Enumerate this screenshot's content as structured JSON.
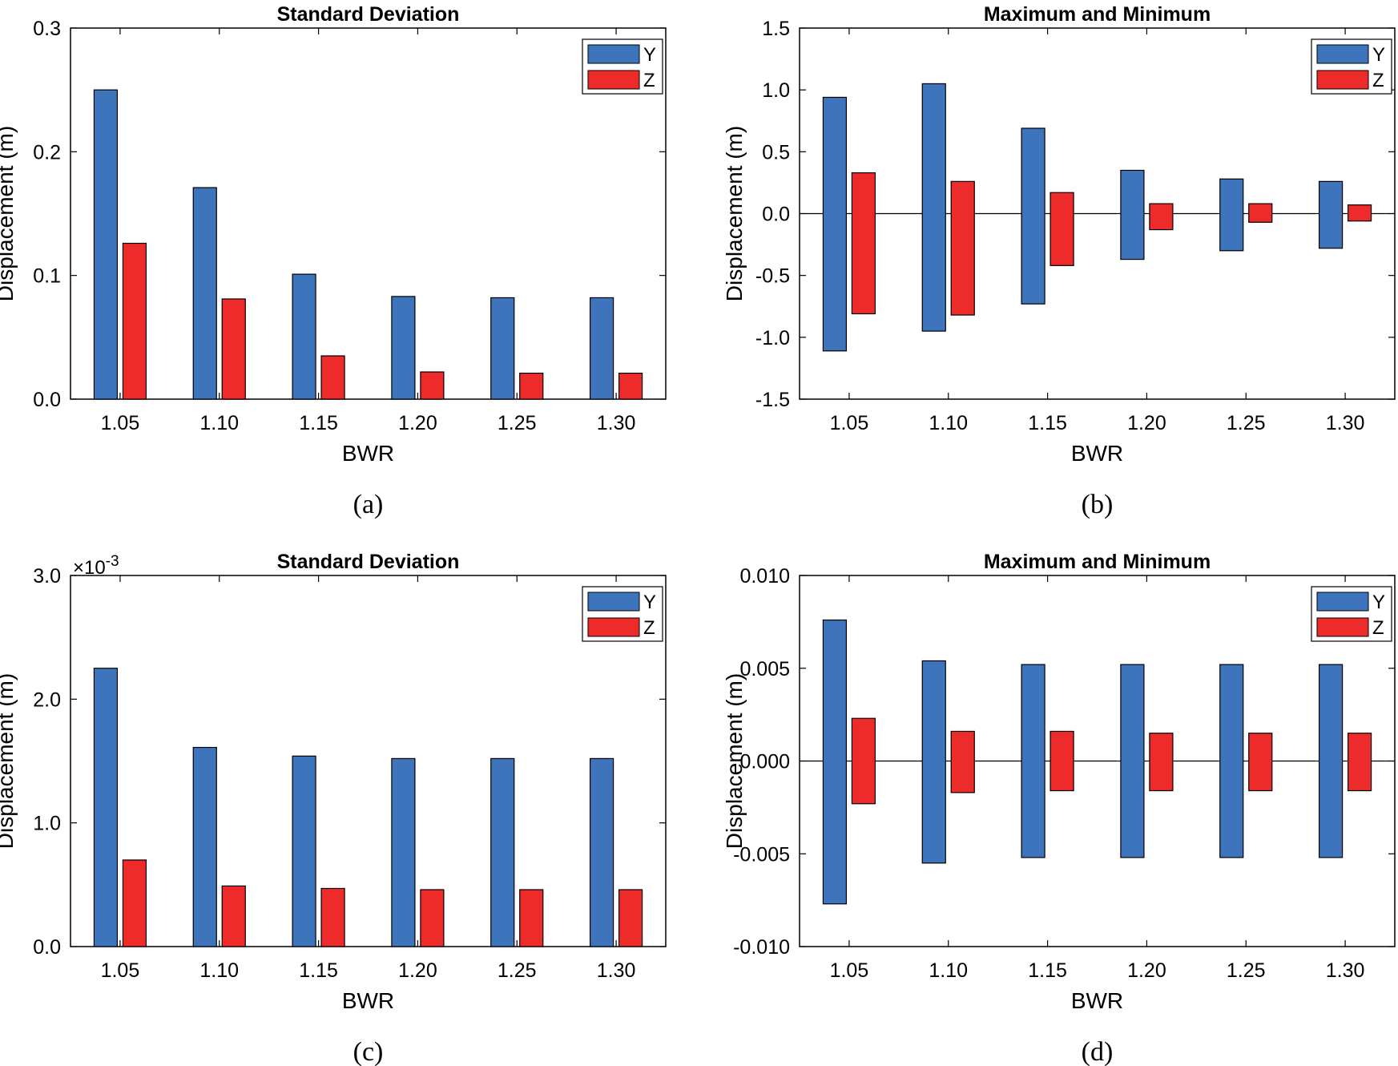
{
  "colors": {
    "Y": "#3d74bb",
    "Z": "#ee2b2b",
    "axis": "#000000",
    "background": "#ffffff"
  },
  "chart_data": [
    {
      "id": "a",
      "caption": "(a)",
      "type": "bar",
      "title": "Standard Deviation",
      "xlabel": "BWR",
      "ylabel": "Displacement (m)",
      "categories": [
        "1.05",
        "1.10",
        "1.15",
        "1.20",
        "1.25",
        "1.30"
      ],
      "series": [
        {
          "name": "Y",
          "values": [
            0.25,
            0.171,
            0.101,
            0.083,
            0.082,
            0.082
          ]
        },
        {
          "name": "Z",
          "values": [
            0.126,
            0.081,
            0.035,
            0.022,
            0.021,
            0.021
          ]
        }
      ],
      "ylim": [
        0,
        0.3
      ],
      "yticks": [
        0,
        0.1,
        0.2,
        0.3
      ],
      "ytick_labels": [
        "0.0",
        "0.1",
        "0.2",
        "0.3"
      ],
      "legend": "top-right",
      "legend_entries": [
        "Y",
        "Z"
      ],
      "exponent_label": null
    },
    {
      "id": "b",
      "caption": "(b)",
      "type": "floating-bar",
      "title": "Maximum and Minimum",
      "xlabel": "BWR",
      "ylabel": "Displacement (m)",
      "categories": [
        "1.05",
        "1.10",
        "1.15",
        "1.20",
        "1.25",
        "1.30"
      ],
      "series": [
        {
          "name": "Y",
          "max": [
            0.94,
            1.05,
            0.69,
            0.35,
            0.28,
            0.26
          ],
          "min": [
            -1.11,
            -0.95,
            -0.73,
            -0.37,
            -0.3,
            -0.28
          ]
        },
        {
          "name": "Z",
          "max": [
            0.33,
            0.26,
            0.17,
            0.08,
            0.08,
            0.07
          ],
          "min": [
            -0.81,
            -0.82,
            -0.42,
            -0.13,
            -0.07,
            -0.06
          ]
        }
      ],
      "ylim": [
        -1.5,
        1.5
      ],
      "yticks": [
        -1.5,
        -1.0,
        -0.5,
        0.0,
        0.5,
        1.0,
        1.5
      ],
      "ytick_labels": [
        "-1.5",
        "-1.0",
        "-0.5",
        "0.0",
        "0.5",
        "1.0",
        "1.5"
      ],
      "zero_line": true,
      "legend": "top-right",
      "legend_entries": [
        "Y",
        "Z"
      ],
      "exponent_label": null
    },
    {
      "id": "c",
      "caption": "(c)",
      "type": "bar",
      "title": "Standard Deviation",
      "xlabel": "BWR",
      "ylabel": "Displacement (m)",
      "categories": [
        "1.05",
        "1.10",
        "1.15",
        "1.20",
        "1.25",
        "1.30"
      ],
      "series": [
        {
          "name": "Y",
          "values": [
            2.25,
            1.61,
            1.54,
            1.52,
            1.52,
            1.52
          ]
        },
        {
          "name": "Z",
          "values": [
            0.7,
            0.49,
            0.47,
            0.46,
            0.46,
            0.46
          ]
        }
      ],
      "ylim": [
        0,
        3.0
      ],
      "yticks": [
        0,
        1.0,
        2.0,
        3.0
      ],
      "ytick_labels": [
        "0.0",
        "1.0",
        "2.0",
        "3.0"
      ],
      "legend": "top-right",
      "legend_entries": [
        "Y",
        "Z"
      ],
      "exponent_label": {
        "base": "×10",
        "power": "-3"
      }
    },
    {
      "id": "d",
      "caption": "(d)",
      "type": "floating-bar",
      "title": "Maximum and Minimum",
      "xlabel": "BWR",
      "ylabel": "Displacement (m)",
      "categories": [
        "1.05",
        "1.10",
        "1.15",
        "1.20",
        "1.25",
        "1.30"
      ],
      "series": [
        {
          "name": "Y",
          "max": [
            0.0076,
            0.0054,
            0.0052,
            0.0052,
            0.0052,
            0.0052
          ],
          "min": [
            -0.0077,
            -0.0055,
            -0.0052,
            -0.0052,
            -0.0052,
            -0.0052
          ]
        },
        {
          "name": "Z",
          "max": [
            0.0023,
            0.0016,
            0.0016,
            0.0015,
            0.0015,
            0.0015
          ],
          "min": [
            -0.0023,
            -0.0017,
            -0.0016,
            -0.0016,
            -0.0016,
            -0.0016
          ]
        }
      ],
      "ylim": [
        -0.01,
        0.01
      ],
      "yticks": [
        -0.01,
        -0.005,
        0.0,
        0.005,
        0.01
      ],
      "ytick_labels": [
        "-0.010",
        "-0.005",
        "0.000",
        "0.005",
        "0.010"
      ],
      "zero_line": true,
      "legend": "top-right",
      "legend_entries": [
        "Y",
        "Z"
      ],
      "exponent_label": null
    }
  ]
}
